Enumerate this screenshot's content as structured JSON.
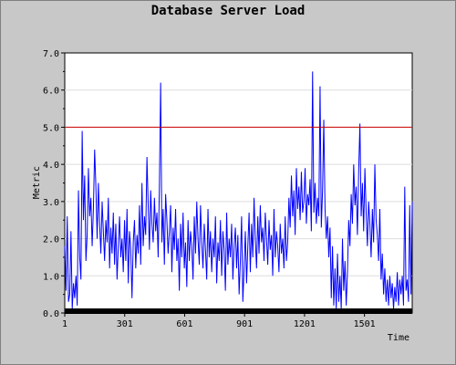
{
  "chart_data": {
    "type": "line",
    "title": "Database Server Load",
    "xlabel": "Time",
    "ylabel": "Metric",
    "xlim": [
      1,
      1740
    ],
    "ylim": [
      0,
      7
    ],
    "x_ticks": [
      1,
      301,
      601,
      901,
      1201,
      1501
    ],
    "y_ticks": [
      "0.0",
      "1.0",
      "2.0",
      "3.0",
      "4.0",
      "5.0",
      "6.0",
      "7.0"
    ],
    "y_tick_values": [
      0,
      1,
      2,
      3,
      4,
      5,
      6,
      7
    ],
    "threshold": 5.0,
    "grid": true,
    "series": [
      {
        "values": [
          1.8,
          0.6,
          2.6,
          0.3,
          0.5,
          2.2,
          0.1,
          0.8,
          0.4,
          1.0,
          0.2,
          3.3,
          1.5,
          0.9,
          4.9,
          2.5,
          3.7,
          1.4,
          2.1,
          3.9,
          2.6,
          3.1,
          1.8,
          2.8,
          4.4,
          3.4,
          2.0,
          3.5,
          2.4,
          1.6,
          3.0,
          2.2,
          1.4,
          2.5,
          1.9,
          3.1,
          1.2,
          2.3,
          1.6,
          2.7,
          1.3,
          2.4,
          0.9,
          1.8,
          2.6,
          1.5,
          2.0,
          1.1,
          2.5,
          1.4,
          2.8,
          0.8,
          2.2,
          1.7,
          0.4,
          1.9,
          2.5,
          1.2,
          2.1,
          1.6,
          2.9,
          1.3,
          3.5,
          1.8,
          2.6,
          2.1,
          4.2,
          2.9,
          1.7,
          3.3,
          2.4,
          1.9,
          3.1,
          2.2,
          2.7,
          1.5,
          3.4,
          6.2,
          1.9,
          2.8,
          1.3,
          3.2,
          2.5,
          1.6,
          2.2,
          2.9,
          1.1,
          2.3,
          1.7,
          2.8,
          1.4,
          2.0,
          0.6,
          2.4,
          1.5,
          2.7,
          1.2,
          1.9,
          0.7,
          2.5,
          1.4,
          2.2,
          1.8,
          0.9,
          2.6,
          1.6,
          3.0,
          2.0,
          1.3,
          2.9,
          1.9,
          1.2,
          2.4,
          1.7,
          0.9,
          2.8,
          1.5,
          2.2,
          1.1,
          2.0,
          1.5,
          2.6,
          0.8,
          1.9,
          1.4,
          2.5,
          1.0,
          2.2,
          1.7,
          0.6,
          2.7,
          1.3,
          2.0,
          1.5,
          2.4,
          0.9,
          1.8,
          2.3,
          1.2,
          2.1,
          0.5,
          1.4,
          2.6,
          0.3,
          1.2,
          2.2,
          0.8,
          1.8,
          2.7,
          1.1,
          2.4,
          1.5,
          3.1,
          2.0,
          1.2,
          2.6,
          1.6,
          2.9,
          1.9,
          2.3,
          1.4,
          2.7,
          2.0,
          1.3,
          2.5,
          1.7,
          2.1,
          1.0,
          2.8,
          1.5,
          2.2,
          1.8,
          1.1,
          2.4,
          1.6,
          2.0,
          1.2,
          2.6,
          1.4,
          1.9,
          3.1,
          2.3,
          3.7,
          2.6,
          3.3,
          2.1,
          3.9,
          2.8,
          3.4,
          2.5,
          3.8,
          2.7,
          3.0,
          3.9,
          2.4,
          3.2,
          2.9,
          3.6,
          2.2,
          6.5,
          2.7,
          3.5,
          2.4,
          3.1,
          2.6,
          6.1,
          2.3,
          3.3,
          5.2,
          2.8,
          2.0,
          2.6,
          1.5,
          2.3,
          0.4,
          1.8,
          0.2,
          1.2,
          0.1,
          1.6,
          0.3,
          1.0,
          0.1,
          2.0,
          0.6,
          1.4,
          0.2,
          1.1,
          2.5,
          1.8,
          3.2,
          2.4,
          4.0,
          2.9,
          3.4,
          2.1,
          3.8,
          5.1,
          2.6,
          3.5,
          2.2,
          3.9,
          2.7,
          1.8,
          3.0,
          2.4,
          1.5,
          2.8,
          1.9,
          4.0,
          2.5,
          2.1,
          1.4,
          2.8,
          0.9,
          1.6,
          0.5,
          1.2,
          0.3,
          0.9,
          0.2,
          1.0,
          0.4,
          0.8,
          0.1,
          0.7,
          0.3,
          1.1,
          0.2,
          0.9,
          0.5,
          1.0,
          0.2,
          3.4,
          0.6,
          0.9,
          0.3,
          2.9,
          0.5,
          3.0
        ]
      }
    ]
  }
}
